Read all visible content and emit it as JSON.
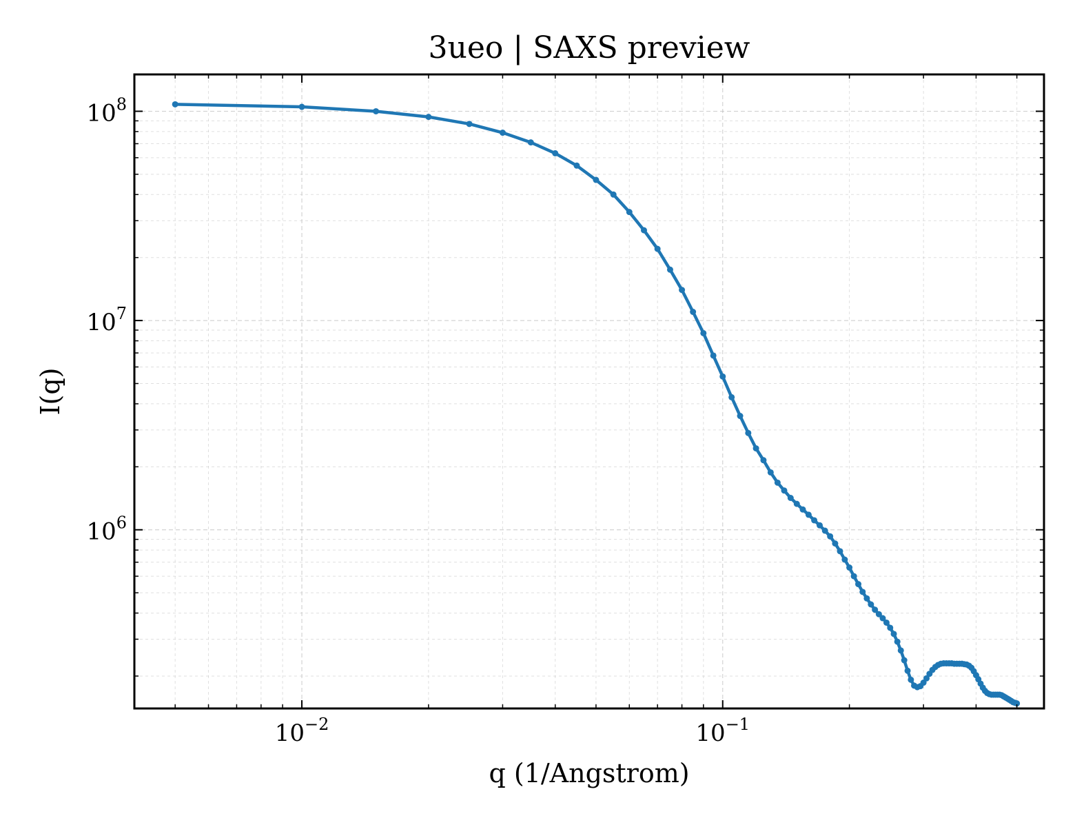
{
  "chart_data": {
    "type": "line",
    "title": "3ueo | SAXS preview",
    "xlabel": "q (1/Angstrom)",
    "ylabel": "I(q)",
    "xscale": "log",
    "yscale": "log",
    "xlim": [
      0.004,
      0.58
    ],
    "ylim": [
      140000,
      150000000
    ],
    "grid": true,
    "legend": "none",
    "x_ticks": [
      {
        "base": "10",
        "exp": "−2",
        "value": 0.01
      },
      {
        "base": "10",
        "exp": "−1",
        "value": 0.1
      }
    ],
    "y_ticks": [
      {
        "base": "10",
        "exp": "6",
        "value": 1000000
      },
      {
        "base": "10",
        "exp": "7",
        "value": 10000000
      },
      {
        "base": "10",
        "exp": "8",
        "value": 100000000
      }
    ],
    "color": "#1f77b4",
    "series": [
      {
        "x": [
          0.005,
          0.01,
          0.015,
          0.02,
          0.025,
          0.03,
          0.035,
          0.04,
          0.045,
          0.05,
          0.055,
          0.06,
          0.065,
          0.07,
          0.075,
          0.08,
          0.085,
          0.09,
          0.095,
          0.1,
          0.105,
          0.11,
          0.115,
          0.12,
          0.125,
          0.13,
          0.135,
          0.14,
          0.145,
          0.15,
          0.155,
          0.16,
          0.165,
          0.17,
          0.175,
          0.18,
          0.185,
          0.19,
          0.195,
          0.2,
          0.205,
          0.21,
          0.215,
          0.22,
          0.225,
          0.23,
          0.235,
          0.24,
          0.245,
          0.25,
          0.255,
          0.26,
          0.265,
          0.27,
          0.275,
          0.28,
          0.285,
          0.29,
          0.295,
          0.3,
          0.305,
          0.31,
          0.315,
          0.32,
          0.325,
          0.33,
          0.335,
          0.34,
          0.345,
          0.35,
          0.355,
          0.36,
          0.365,
          0.37,
          0.375,
          0.38,
          0.385,
          0.39,
          0.395,
          0.4,
          0.405,
          0.41,
          0.415,
          0.42,
          0.425,
          0.43,
          0.435,
          0.44,
          0.445,
          0.45,
          0.455,
          0.46,
          0.465,
          0.47,
          0.475,
          0.48,
          0.485,
          0.49,
          0.495,
          0.5
        ],
        "y": [
          108000000,
          105000000,
          100000000,
          94000000,
          87000000,
          79000000,
          71000000,
          63000000,
          55000000,
          47000000,
          40000000,
          33000000,
          27000000,
          22000000,
          17500000,
          14000000,
          11000000,
          8700000,
          6800000,
          5400000,
          4300000,
          3500000,
          2900000,
          2450000,
          2150000,
          1880000,
          1680000,
          1540000,
          1420000,
          1330000,
          1250000,
          1180000,
          1110000,
          1050000,
          990000,
          930000,
          860000,
          790000,
          720000,
          660000,
          600000,
          550000,
          505000,
          470000,
          440000,
          415000,
          395000,
          378000,
          360000,
          340000,
          318000,
          292000,
          265000,
          238000,
          212000,
          192000,
          180000,
          177000,
          179000,
          186000,
          195000,
          205000,
          214000,
          221000,
          226000,
          229000,
          230000,
          230000,
          230000,
          230000,
          229000,
          229000,
          229000,
          229000,
          228000,
          227000,
          224000,
          219000,
          211000,
          202000,
          193000,
          184000,
          176000,
          170000,
          166000,
          164000,
          163000,
          163000,
          163000,
          163000,
          163000,
          162000,
          160000,
          158000,
          156000,
          154000,
          152000,
          150000,
          149000,
          148000
        ]
      }
    ]
  }
}
